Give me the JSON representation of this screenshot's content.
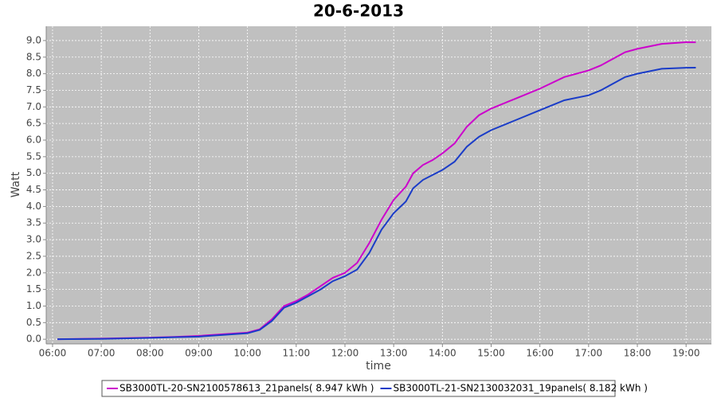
{
  "chart_data": {
    "type": "line",
    "title": "20-6-2013",
    "x_label": "time",
    "y_label": "Watt",
    "x": [
      6.1,
      7,
      8,
      8.5,
      9,
      9.5,
      10,
      10.25,
      10.5,
      10.75,
      11,
      11.25,
      11.5,
      11.75,
      12,
      12.25,
      12.5,
      12.75,
      13,
      13.25,
      13.4,
      13.6,
      13.8,
      14,
      14.25,
      14.5,
      14.75,
      15,
      15.5,
      16,
      16.5,
      17,
      17.25,
      17.5,
      17.75,
      18,
      18.5,
      19,
      19.2
    ],
    "series": [
      {
        "name": "SB3000TL-20-SN2100578613_21panels( 8.947 kWh )",
        "color": "#cc00cc",
        "values": [
          0.0,
          0.02,
          0.05,
          0.07,
          0.1,
          0.15,
          0.2,
          0.3,
          0.6,
          1.0,
          1.15,
          1.35,
          1.6,
          1.85,
          2.0,
          2.3,
          2.9,
          3.6,
          4.2,
          4.6,
          5.0,
          5.25,
          5.4,
          5.6,
          5.9,
          6.4,
          6.75,
          6.95,
          7.25,
          7.55,
          7.9,
          8.1,
          8.25,
          8.45,
          8.65,
          8.75,
          8.9,
          8.95,
          8.947
        ]
      },
      {
        "name": "SB3000TL-21-SN2130032031_19panels( 8.182 kWh )",
        "color": "#1a3cc8",
        "values": [
          0.0,
          0.01,
          0.04,
          0.06,
          0.08,
          0.13,
          0.18,
          0.28,
          0.55,
          0.95,
          1.1,
          1.3,
          1.5,
          1.75,
          1.9,
          2.1,
          2.6,
          3.3,
          3.8,
          4.15,
          4.55,
          4.8,
          4.95,
          5.1,
          5.35,
          5.8,
          6.1,
          6.3,
          6.6,
          6.9,
          7.2,
          7.35,
          7.5,
          7.7,
          7.9,
          8.0,
          8.15,
          8.18,
          8.182
        ]
      }
    ],
    "xlim": [
      5.87,
      19.52
    ],
    "xticks": [
      {
        "value": 6,
        "label": "06:00"
      },
      {
        "value": 7,
        "label": "07:00"
      },
      {
        "value": 8,
        "label": "08:00"
      },
      {
        "value": 9,
        "label": "09:00"
      },
      {
        "value": 10,
        "label": "10:00"
      },
      {
        "value": 11,
        "label": "11:00"
      },
      {
        "value": 12,
        "label": "12:00"
      },
      {
        "value": 13,
        "label": "13:00"
      },
      {
        "value": 14,
        "label": "14:00"
      },
      {
        "value": 15,
        "label": "15:00"
      },
      {
        "value": 16,
        "label": "16:00"
      },
      {
        "value": 17,
        "label": "17:00"
      },
      {
        "value": 18,
        "label": "18:00"
      },
      {
        "value": 19,
        "label": "19:00"
      }
    ],
    "ylim": [
      -0.14,
      9.43
    ],
    "yticks": [
      {
        "value": 0,
        "label": "0.0"
      },
      0.5,
      {
        "value": 1,
        "label": "1.0"
      },
      1.5,
      {
        "value": 2,
        "label": "2.0"
      },
      2.5,
      {
        "value": 3,
        "label": "3.0"
      },
      3.5,
      {
        "value": 4,
        "label": "4.0"
      },
      4.5,
      {
        "value": 5,
        "label": "5.0"
      },
      5.5,
      {
        "value": 6,
        "label": "6.0"
      },
      6.5,
      {
        "value": 7,
        "label": "7.0"
      },
      7.5,
      {
        "value": 8,
        "label": "8.0"
      },
      8.5,
      {
        "value": 9,
        "label": "9.0"
      }
    ],
    "grid": true,
    "legend": "bottom"
  }
}
